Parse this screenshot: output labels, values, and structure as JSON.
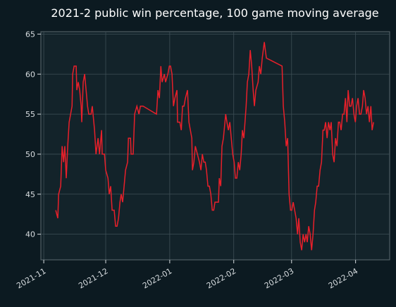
{
  "chart_data": {
    "type": "line",
    "title": "2021-2 public win percentage, 100 game moving average",
    "x": [
      5.8,
      6.8,
      7.2,
      8.2,
      8.9,
      9.6,
      10.2,
      10.9,
      11.6,
      12.3,
      13.0,
      13.7,
      14.0,
      14.7,
      15.7,
      16.0,
      16.7,
      17.4,
      18.1,
      18.4,
      19.1,
      19.8,
      20.5,
      21.2,
      21.8,
      22.9,
      23.5,
      24.6,
      25.3,
      26.3,
      27.0,
      28.0,
      28.3,
      29.4,
      30.0,
      31.1,
      31.7,
      32.4,
      33.1,
      34.1,
      34.8,
      35.5,
      36.2,
      36.9,
      37.5,
      38.2,
      38.9,
      39.6,
      40.6,
      41.0,
      42.0,
      42.3,
      43.3,
      44.0,
      45.1,
      46.1,
      46.8,
      48.1,
      54.6,
      55.3,
      56.0,
      56.7,
      57.3,
      58.4,
      59.0,
      60.1,
      60.8,
      61.4,
      62.1,
      62.8,
      63.5,
      64.5,
      64.8,
      65.9,
      66.6,
      67.2,
      67.9,
      68.6,
      69.6,
      70.3,
      71.0,
      71.7,
      72.0,
      72.7,
      73.4,
      74.4,
      75.4,
      76.1,
      76.8,
      77.5,
      78.2,
      78.8,
      79.5,
      80.2,
      80.9,
      81.6,
      82.3,
      82.9,
      83.6,
      84.6,
      85.0,
      85.7,
      86.3,
      87.0,
      88.1,
      88.7,
      89.4,
      90.1,
      90.8,
      91.5,
      92.2,
      92.8,
      93.5,
      94.2,
      94.9,
      95.6,
      96.2,
      96.9,
      98.0,
      98.6,
      99.3,
      100.0,
      100.7,
      101.4,
      102.0,
      102.7,
      103.8,
      104.4,
      105.1,
      105.8,
      106.8,
      107.8,
      115.4,
      116.0,
      116.7,
      117.4,
      118.1,
      118.8,
      119.5,
      120.1,
      120.8,
      121.5,
      122.2,
      122.9,
      123.5,
      124.2,
      124.9,
      125.6,
      126.3,
      127.0,
      127.6,
      128.3,
      129.0,
      129.7,
      130.4,
      131.1,
      131.7,
      132.4,
      133.1,
      133.8,
      134.5,
      135.2,
      135.8,
      136.5,
      137.2,
      137.9,
      138.6,
      139.2,
      139.9,
      140.6,
      141.3,
      142.0,
      142.7,
      143.3,
      144.0,
      144.7,
      145.4,
      146.1,
      146.8,
      147.4,
      148.1,
      148.8,
      149.5,
      150.2,
      150.9,
      151.5,
      152.2,
      152.9,
      153.6,
      154.3,
      154.9,
      155.6,
      156.3,
      157.0,
      157.7,
      158.4,
      159.0,
      159.7
    ],
    "series": [
      {
        "name": "public win percentage",
        "color": "#e8202a",
        "values": [
          43,
          42,
          45,
          46,
          51,
          49,
          51,
          47,
          51,
          54,
          55,
          56,
          60,
          61,
          61,
          58,
          59,
          58,
          56,
          54,
          59,
          60,
          58,
          56,
          55,
          55,
          56,
          53,
          50,
          52,
          50,
          53,
          50,
          50,
          48,
          47,
          45,
          46,
          43,
          43,
          41,
          41,
          42,
          44,
          45,
          44,
          46,
          48,
          49,
          52,
          52,
          50,
          50,
          55,
          56,
          55,
          56,
          56,
          55,
          58,
          57,
          61,
          59,
          60,
          59,
          60,
          61,
          61,
          60,
          56,
          57,
          58,
          54,
          54,
          53,
          56,
          56,
          57,
          58,
          54,
          53,
          52,
          48,
          49,
          51,
          50,
          49,
          48,
          50,
          49,
          49,
          48,
          46,
          46,
          45,
          43,
          43,
          44,
          44,
          44,
          47,
          46,
          51,
          52,
          55,
          54,
          53,
          54,
          52,
          50,
          49,
          47,
          47,
          49,
          48,
          50,
          53,
          52,
          56,
          59,
          60,
          63,
          61,
          58,
          56,
          58,
          59,
          61,
          60,
          62,
          64,
          62,
          61,
          56,
          54,
          51,
          52,
          45,
          43,
          43,
          44,
          43,
          42,
          40,
          42,
          39,
          38,
          40,
          39,
          40,
          39,
          41,
          40,
          38,
          40,
          43,
          44,
          46,
          46,
          48,
          49,
          53,
          53,
          54,
          52,
          54,
          53,
          54,
          50,
          49,
          52,
          51,
          54,
          54,
          53,
          55,
          55,
          57,
          54,
          58,
          56,
          56,
          57,
          55,
          54,
          56,
          57,
          55,
          55,
          56,
          58,
          57,
          55,
          56,
          54,
          56,
          53,
          54
        ]
      }
    ],
    "xlim": [
      -1.4,
      167.5
    ],
    "xticks": [
      {
        "value": 0,
        "label": "2021-11"
      },
      {
        "value": 30,
        "label": "2021-12"
      },
      {
        "value": 61,
        "label": "2022-01"
      },
      {
        "value": 92,
        "label": "2022-02"
      },
      {
        "value": 120,
        "label": "2022-03"
      },
      {
        "value": 151,
        "label": "2022-04"
      }
    ],
    "ylim": [
      36.8,
      65.3
    ],
    "yticks": [
      40,
      45,
      50,
      55,
      60,
      65
    ],
    "grid": true
  }
}
